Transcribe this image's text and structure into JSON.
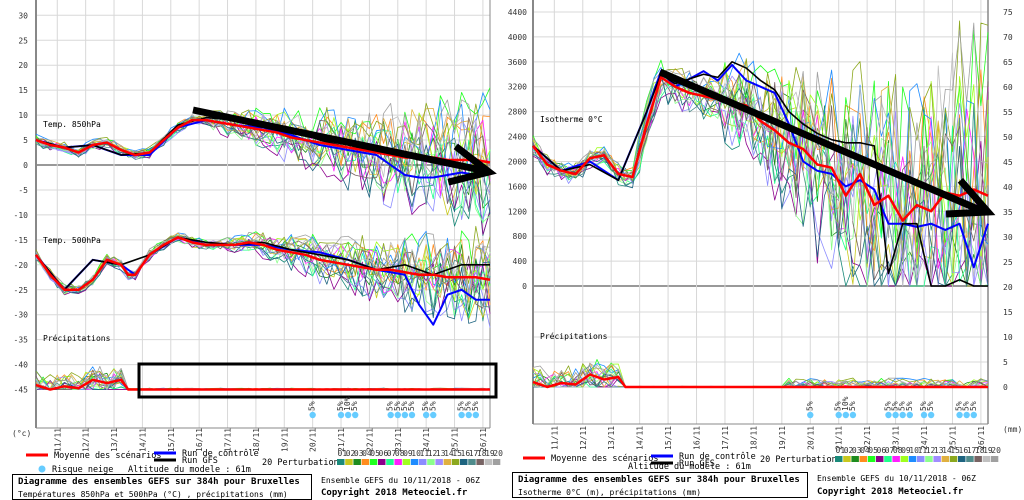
{
  "legend": {
    "mean_label": "Moyenne des scénarios",
    "control_label": "Run de contrôle",
    "gfs_label": "Run GFS",
    "snow_label": "Risque neige",
    "altitude_label": "Altitude du modele : 61m",
    "perturbations_label": "20 Perturbations",
    "perturbation_numbers": [
      "01",
      "02",
      "03",
      "04",
      "05",
      "06",
      "07",
      "08",
      "09",
      "10",
      "11",
      "12",
      "13",
      "14",
      "15",
      "16",
      "17",
      "18",
      "19",
      "20"
    ],
    "perturbation_colors": [
      "#1a8a7a",
      "#c8c81e",
      "#1e8c1e",
      "#ff8c1e",
      "#1eff1e",
      "#8c008c",
      "#1eff8c",
      "#ff1eff",
      "#a0ff1e",
      "#1e8cff",
      "#8c8cff",
      "#8cff8c",
      "#a08cff",
      "#e0b040",
      "#8ca81e",
      "#1e6480",
      "#508c8c",
      "#786464",
      "#c0c0c0",
      "#a0a0a0"
    ],
    "colors": {
      "mean": "#ff0000",
      "control": "#0000ff",
      "gfs": "#000000",
      "snow": "#66ccff"
    }
  },
  "left": {
    "title": "Diagramme des ensembles GEFS sur 384h pour Bruxelles",
    "subtitle": "Températures 850hPa et 500hPa (°C) , précipitations (mm)",
    "unit_label": "(°c)"
  },
  "right": {
    "title": "Diagramme des ensembles GEFS sur 384h pour Bruxelles",
    "subtitle": "Isotherme 0°C (m), précipitations (mm)",
    "unit_label": "(mm)"
  },
  "footer": {
    "run_info": "Ensemble GEFS du 10/11/2018 - 06Z",
    "copyright": "Copyright 2018 Meteociel.fr"
  },
  "chart_data": [
    {
      "type": "line",
      "title": "Diagramme des ensembles GEFS sur 384h pour Bruxelles",
      "subtitle": "Températures 850hPa et 500hPa (°C) , précipitations (mm)",
      "ylabel": "(°c)",
      "ylim": [
        -45,
        30
      ],
      "yticks": [
        30,
        25,
        20,
        15,
        10,
        5,
        0,
        -5,
        -10,
        -15,
        -20,
        -25,
        -30,
        -35,
        -40,
        -45
      ],
      "x_ticks": [
        "11/11",
        "12/11",
        "13/11",
        "14/11",
        "15/11",
        "16/11",
        "17/11",
        "18/11",
        "19/11",
        "20/11",
        "21/11",
        "22/11",
        "23/11",
        "24/11",
        "25/11",
        "26/11"
      ],
      "x_range_days": [
        10.25,
        26.25
      ],
      "grid": true,
      "panels": [
        {
          "name": "Temp. 850hPa",
          "series": [
            {
              "name": "Moyenne des scénarios",
              "x": [
                10.25,
                10.75,
                11.25,
                11.75,
                12.25,
                12.75,
                13.25,
                13.75,
                14.25,
                14.75,
                15.25,
                15.75,
                16.25,
                16.75,
                17.25,
                17.75,
                18.25,
                18.75,
                19.25,
                19.75,
                20.25,
                20.75,
                21.25,
                21.75,
                22.25,
                22.75,
                23.25,
                23.75,
                24.25,
                24.75,
                25.25,
                25.75,
                26.25
              ],
              "y": [
                5,
                4,
                3.5,
                2.5,
                4,
                4.5,
                3,
                2,
                2.5,
                5,
                7.5,
                9,
                9,
                8.5,
                8,
                7.5,
                7,
                6.5,
                5.5,
                5,
                4.5,
                4,
                3.5,
                3,
                2.5,
                2,
                1.5,
                1.5,
                1.5,
                1,
                1,
                1,
                0.5
              ]
            },
            {
              "name": "Run de contrôle",
              "x": [
                10.25,
                11.25,
                12.25,
                13.25,
                14.25,
                15.25,
                16.25,
                17.25,
                18.25,
                19.25,
                20.25,
                21.25,
                22.25,
                22.75,
                23.25,
                23.75,
                24.25,
                24.75,
                25.25,
                25.75,
                26.25
              ],
              "y": [
                5,
                3.5,
                4,
                2,
                2,
                7.5,
                9,
                8,
                7.5,
                6,
                4,
                3,
                2,
                0,
                -2,
                -2.5,
                -2.5,
                -2,
                -1.5,
                -2,
                -1.5
              ]
            },
            {
              "name": "Run GFS",
              "x": [
                10.25,
                11.25,
                12.25,
                13.25,
                14.25,
                15.25,
                16.25,
                17.25,
                18.25,
                19.25,
                20.25,
                21.25,
                22.25,
                23.25,
                24.25,
                25.25,
                26.25
              ],
              "y": [
                5,
                3.5,
                4,
                2,
                2.5,
                8,
                9.5,
                9,
                8,
                7,
                5,
                3.5,
                3,
                2.5,
                1,
                0,
                -1
              ]
            }
          ]
        },
        {
          "name": "Temp. 500hPa",
          "series": [
            {
              "name": "Moyenne des scénarios",
              "x": [
                10.25,
                10.75,
                11.25,
                11.75,
                12.25,
                12.75,
                13.25,
                13.5,
                13.75,
                14.25,
                14.75,
                15.25,
                15.75,
                16.25,
                16.75,
                17.25,
                17.75,
                18.25,
                18.75,
                19.25,
                19.75,
                20.25,
                20.75,
                21.25,
                21.75,
                22.25,
                22.75,
                23.25,
                23.75,
                24.25,
                24.75,
                25.25,
                25.75,
                26.25
              ],
              "y": [
                -18,
                -22,
                -25,
                -25,
                -23,
                -19,
                -20,
                -22,
                -22,
                -18,
                -16,
                -14.5,
                -15.5,
                -16,
                -16,
                -16,
                -15.5,
                -16,
                -17,
                -17.5,
                -18,
                -19,
                -19.5,
                -20,
                -20.5,
                -21,
                -21,
                -21.5,
                -22,
                -22,
                -22.5,
                -22.5,
                -22.5,
                -23
              ]
            },
            {
              "name": "Run de contrôle",
              "x": [
                10.25,
                11.25,
                12.25,
                13.25,
                13.75,
                14.25,
                15.25,
                16.25,
                17.25,
                18.25,
                19.25,
                20.25,
                21.25,
                22.25,
                23.25,
                23.75,
                24.25,
                24.75,
                25.25,
                25.75,
                26.25
              ],
              "y": [
                -18,
                -25,
                -19,
                -20,
                -22,
                -18,
                -14.5,
                -16,
                -16,
                -16,
                -17,
                -17.5,
                -19,
                -21,
                -22,
                -28,
                -32,
                -26,
                -25,
                -27,
                -27
              ]
            },
            {
              "name": "Run GFS",
              "x": [
                10.25,
                11.25,
                12.25,
                13.25,
                14.25,
                15.25,
                16.25,
                17.25,
                18.25,
                19.25,
                20.25,
                21.25,
                22.25,
                23.25,
                24.25,
                25.25,
                26.25
              ],
              "y": [
                -18,
                -25,
                -19,
                -20,
                -18,
                -14.5,
                -15.5,
                -16,
                -15.5,
                -17,
                -18,
                -19,
                -21,
                -20,
                -22,
                -20,
                -20
              ]
            }
          ]
        },
        {
          "name": "Précipitations",
          "baseline": -45,
          "series": [
            {
              "name": "Moyenne des scénarios",
              "x": [
                10.25,
                10.75,
                11.25,
                11.75,
                12.25,
                12.75,
                13.25,
                13.5,
                26.25
              ],
              "y": [
                0.7,
                0,
                0.5,
                0.2,
                1.5,
                1,
                1.5,
                0,
                0
              ]
            }
          ]
        }
      ],
      "snow_risk": [
        {
          "date": "20/11",
          "labels": [
            "5%"
          ]
        },
        {
          "date": "21/11",
          "labels": [
            "5%",
            "10%",
            "5%"
          ]
        },
        {
          "date": "22/11-23/11",
          "labels": [
            "5%",
            "5%",
            "5%",
            "5%"
          ]
        },
        {
          "date": "24/11",
          "labels": [
            "5%",
            "5%"
          ]
        },
        {
          "date": "25/11-26/11",
          "labels": [
            "5%",
            "5%",
            "5%"
          ]
        }
      ],
      "annotations": [
        "thick black arrow trending downward from 16/11 to 26/11 over 850hPa temps",
        "black rectangle highlighting zero precipitation from 14/11 to 26/11"
      ]
    },
    {
      "type": "line",
      "title": "Diagramme des ensembles GEFS sur 384h pour Bruxelles",
      "subtitle": "Isotherme 0°C (m), précipitations (mm)",
      "ylabel_left": "Isotherme 0°C (m)",
      "ylabel_right": "(mm)",
      "ylim_left": [
        0,
        4400
      ],
      "yticks_left": [
        4400,
        4000,
        3600,
        3200,
        2800,
        2400,
        2000,
        1600,
        1200,
        800,
        400,
        0
      ],
      "ylim_right": [
        0,
        75
      ],
      "yticks_right": [
        75,
        70,
        65,
        60,
        55,
        50,
        45,
        40,
        35,
        30,
        25,
        20,
        15,
        10,
        5,
        0
      ],
      "x_ticks": [
        "11/11",
        "12/11",
        "13/11",
        "14/11",
        "15/11",
        "16/11",
        "17/11",
        "18/11",
        "19/11",
        "20/11",
        "21/11",
        "22/11",
        "23/11",
        "24/11",
        "25/11",
        "26/11"
      ],
      "x_range_days": [
        10.25,
        26.25
      ],
      "grid": true,
      "panels": [
        {
          "name": "Isotherme 0°C",
          "series": [
            {
              "name": "Moyenne des scénarios",
              "x": [
                10.25,
                10.75,
                11.25,
                11.75,
                12.25,
                12.75,
                13.25,
                13.75,
                14.25,
                14.75,
                15.25,
                15.75,
                16.25,
                16.75,
                17.25,
                17.75,
                18.25,
                18.75,
                19.25,
                19.75,
                20.25,
                20.75,
                21.25,
                21.75,
                22.25,
                22.75,
                23.25,
                23.75,
                24.25,
                24.75,
                25.25,
                25.75,
                26.25
              ],
              "y": [
                2250,
                1950,
                1850,
                1800,
                2050,
                2100,
                1800,
                1750,
                2600,
                3350,
                3200,
                3100,
                3050,
                3000,
                2950,
                2900,
                2650,
                2500,
                2300,
                2200,
                1950,
                1900,
                1450,
                1800,
                1300,
                1450,
                1050,
                1300,
                1200,
                1500,
                1450,
                1550,
                1450
              ]
            },
            {
              "name": "Run de contrôle",
              "x": [
                10.25,
                11.25,
                12.25,
                13.25,
                14.25,
                14.75,
                15.25,
                16.25,
                16.75,
                17.25,
                17.75,
                18.25,
                18.75,
                19.25,
                19.75,
                20.25,
                20.75,
                21.25,
                21.75,
                22.25,
                22.75,
                23.25,
                23.75,
                24.25,
                24.75,
                25.25,
                25.75,
                26.25
              ],
              "y": [
                2250,
                1850,
                2000,
                1700,
                2800,
                3450,
                3200,
                3450,
                3300,
                3550,
                3300,
                3200,
                3100,
                2600,
                2000,
                1850,
                1800,
                1600,
                1700,
                1550,
                1000,
                1000,
                950,
                1000,
                900,
                1000,
                300,
                1000
              ]
            },
            {
              "name": "Run GFS",
              "x": [
                10.25,
                11.25,
                12.25,
                13.25,
                14.25,
                14.75,
                15.25,
                16.25,
                16.75,
                17.25,
                17.75,
                18.25,
                18.75,
                19.25,
                19.75,
                20.25,
                20.75,
                21.25,
                21.75,
                22.25,
                22.75,
                23.25,
                23.75,
                24.25,
                24.75,
                25.25,
                25.75,
                26.25
              ],
              "y": [
                2250,
                1850,
                1950,
                1700,
                2800,
                3400,
                3250,
                3400,
                3350,
                3600,
                3500,
                3300,
                3150,
                2800,
                2600,
                2450,
                2350,
                2300,
                2300,
                2250,
                200,
                1000,
                1000,
                0,
                0,
                100,
                0,
                0
              ]
            }
          ]
        },
        {
          "name": "Précipitations",
          "baseline_mm": 0,
          "series": [
            {
              "name": "Moyenne des scénarios",
              "x": [
                10.25,
                10.75,
                11.25,
                11.75,
                12.25,
                12.75,
                13.25,
                13.5,
                26.25
              ],
              "y": [
                1,
                0,
                0.8,
                0.5,
                2.5,
                1.5,
                2,
                0,
                0
              ]
            }
          ]
        }
      ],
      "snow_risk": [
        {
          "date": "20/11",
          "labels": [
            "5%"
          ]
        },
        {
          "date": "21/11",
          "labels": [
            "5%",
            "10%",
            "5%"
          ]
        },
        {
          "date": "22/11-23/11",
          "labels": [
            "5%",
            "5%",
            "5%",
            "5%"
          ]
        },
        {
          "date": "24/11",
          "labels": [
            "5%",
            "5%"
          ]
        },
        {
          "date": "25/11-26/11",
          "labels": [
            "5%",
            "5%",
            "5%"
          ]
        }
      ],
      "annotations": [
        "thick black arrow trending downward from 15/11 to 26/11 over 0°C isotherm"
      ]
    }
  ]
}
